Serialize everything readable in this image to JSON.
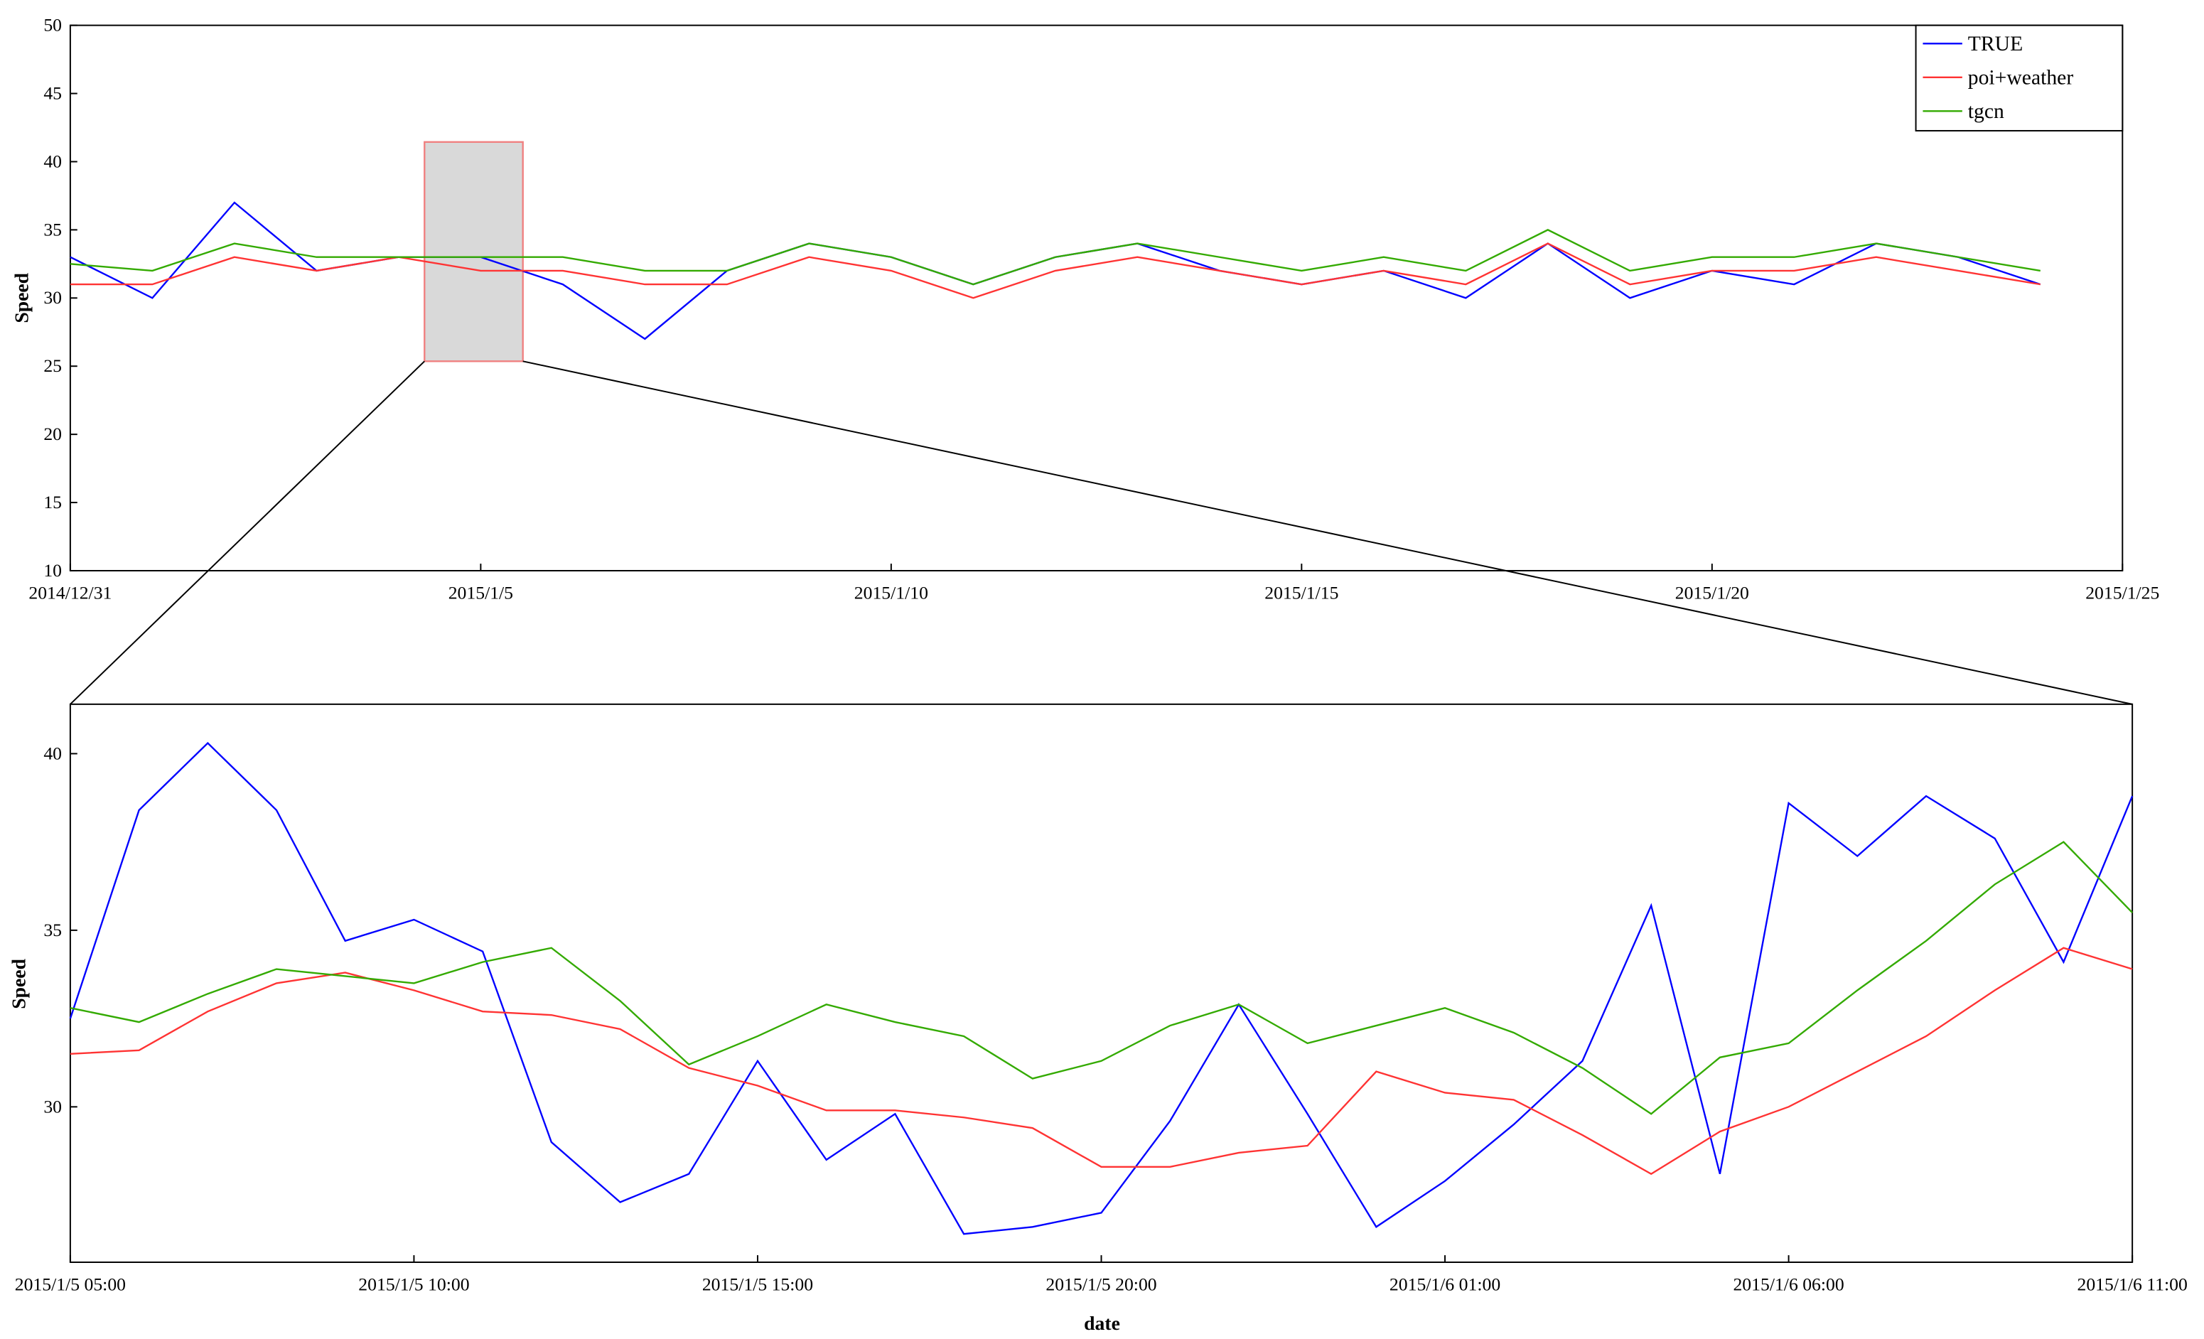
{
  "chart_data": [
    {
      "type": "line",
      "y_label": "Speed",
      "x": [
        "2014/12/31",
        "2015/1/1",
        "2015/1/2",
        "2015/1/3",
        "2015/1/4",
        "2015/1/5",
        "2015/1/6",
        "2015/1/7",
        "2015/1/8",
        "2015/1/9",
        "2015/1/10",
        "2015/1/11",
        "2015/1/12",
        "2015/1/13",
        "2015/1/14",
        "2015/1/15",
        "2015/1/16",
        "2015/1/17",
        "2015/1/18",
        "2015/1/19",
        "2015/1/20",
        "2015/1/21",
        "2015/1/22",
        "2015/1/23",
        "2015/1/24"
      ],
      "series": [
        {
          "name": "TRUE",
          "color": "#0000ff",
          "values": [
            33,
            30,
            37,
            32,
            33,
            33,
            31,
            27,
            32,
            34,
            33,
            31,
            33,
            34,
            32,
            31,
            32,
            30,
            34,
            30,
            32,
            31,
            34,
            33,
            31
          ]
        },
        {
          "name": "poi+weather",
          "color": "#ff3333",
          "values": [
            31,
            31,
            33,
            32,
            33,
            32,
            32,
            31,
            31,
            33,
            32,
            30,
            32,
            33,
            32,
            31,
            32,
            31,
            34,
            31,
            32,
            32,
            33,
            32,
            31
          ]
        },
        {
          "name": "tgcn",
          "color": "#33aa00",
          "values": [
            32.5,
            32,
            34,
            33,
            33,
            33,
            33,
            32,
            32,
            34,
            33,
            31,
            33,
            34,
            33,
            32,
            33,
            32,
            35,
            32,
            33,
            33,
            34,
            33,
            32
          ]
        }
      ],
      "xlim": [
        "2014/12/31",
        "2015/1/25"
      ],
      "xticks": [
        "2014/12/31",
        "2015/1/5",
        "2015/1/10",
        "2015/1/15",
        "2015/1/20",
        "2015/1/25"
      ],
      "ylim": [
        10,
        50
      ],
      "yticks": [
        10,
        15,
        20,
        25,
        30,
        35,
        40,
        45,
        50
      ],
      "legend": "top-right"
    },
    {
      "type": "line",
      "x_label": "date",
      "y_label": "Speed",
      "x": [
        "2015/1/5 05:00",
        "2015/1/5 06:00",
        "2015/1/5 07:00",
        "2015/1/5 08:00",
        "2015/1/5 09:00",
        "2015/1/5 10:00",
        "2015/1/5 11:00",
        "2015/1/5 12:00",
        "2015/1/5 13:00",
        "2015/1/5 14:00",
        "2015/1/5 15:00",
        "2015/1/5 16:00",
        "2015/1/5 17:00",
        "2015/1/5 18:00",
        "2015/1/5 19:00",
        "2015/1/5 20:00",
        "2015/1/5 21:00",
        "2015/1/5 22:00",
        "2015/1/5 23:00",
        "2015/1/6 00:00",
        "2015/1/6 01:00",
        "2015/1/6 02:00",
        "2015/1/6 03:00",
        "2015/1/6 04:00",
        "2015/1/6 05:00",
        "2015/1/6 06:00",
        "2015/1/6 07:00",
        "2015/1/6 08:00",
        "2015/1/6 09:00",
        "2015/1/6 10:00",
        "2015/1/6 11:00"
      ],
      "series": [
        {
          "color": "#0000ff",
          "values": [
            32.5,
            38.4,
            40.3,
            38.4,
            34.7,
            35.3,
            34.4,
            29.0,
            27.3,
            28.1,
            31.3,
            28.5,
            29.8,
            26.4,
            26.6,
            27.0,
            29.6,
            32.9,
            29.8,
            26.6,
            27.9,
            29.5,
            31.3,
            35.7,
            28.1,
            38.6,
            37.1,
            38.8,
            37.6,
            34.1,
            38.8
          ]
        },
        {
          "color": "#ff3333",
          "values": [
            31.5,
            31.6,
            32.7,
            33.5,
            33.8,
            33.3,
            32.7,
            32.6,
            32.2,
            31.1,
            30.6,
            29.9,
            29.9,
            29.7,
            29.4,
            28.3,
            28.3,
            28.7,
            28.9,
            31.0,
            30.4,
            30.2,
            29.2,
            28.1,
            29.3,
            30.0,
            31.0,
            32.0,
            33.3,
            34.5,
            33.9
          ]
        },
        {
          "color": "#33aa00",
          "values": [
            32.8,
            32.4,
            33.2,
            33.9,
            33.7,
            33.5,
            34.1,
            34.5,
            33.0,
            31.2,
            32.0,
            32.9,
            32.4,
            32.0,
            30.8,
            31.3,
            32.3,
            32.9,
            31.8,
            32.3,
            32.8,
            32.1,
            31.1,
            29.8,
            31.4,
            31.8,
            33.3,
            34.7,
            36.3,
            37.5,
            35.5
          ]
        }
      ],
      "xlim": [
        "2015/1/5 05:00",
        "2015/1/6 11:00"
      ],
      "xticks": [
        "2015/1/5 05:00",
        "2015/1/5 10:00",
        "2015/1/5 15:00",
        "2015/1/5 20:00",
        "2015/1/6 01:00",
        "2015/1/6 06:00",
        "2015/1/6 11:00"
      ],
      "ylim": [
        25.6,
        41.4
      ],
      "yticks": [
        30,
        35,
        40
      ]
    }
  ]
}
